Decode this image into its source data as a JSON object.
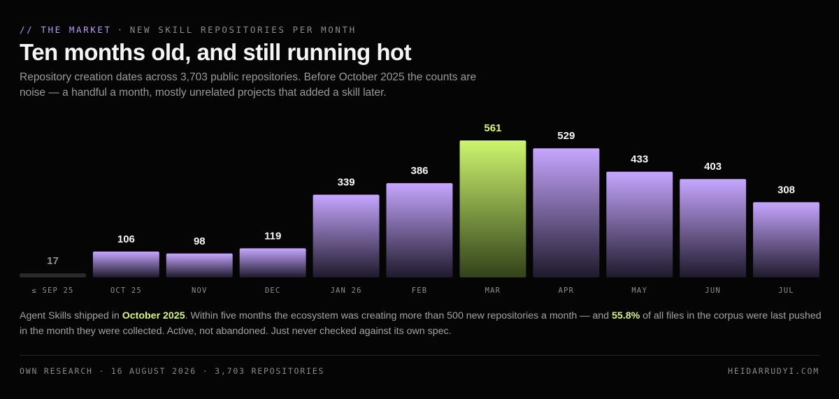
{
  "header": {
    "eyebrow_section": "// THE MARKET",
    "eyebrow_separator": "·",
    "eyebrow_topic": "NEW SKILL REPOSITORIES PER MONTH",
    "title": "Ten months old, and still running hot",
    "subtitle": "Repository creation dates across 3,703 public repositories. Before October 2025 the counts are noise — a handful a month, mostly unrelated projects that added a skill later."
  },
  "chart_data": {
    "type": "bar",
    "categories": [
      "≤ SEP 25",
      "OCT 25",
      "NOV",
      "DEC",
      "JAN 26",
      "FEB",
      "MAR",
      "APR",
      "MAY",
      "JUN",
      "JUL"
    ],
    "values": [
      17,
      106,
      98,
      119,
      339,
      386,
      561,
      529,
      433,
      403,
      308
    ],
    "ylim": [
      0,
      561
    ],
    "highlight_index": 6,
    "muted_index": 0,
    "grid": false,
    "legend": "none",
    "colors": {
      "bar_top": "#c6a6ff",
      "bar_bottom": "#1f1a2c",
      "highlight_top": "#cdf56e",
      "highlight_bottom": "#32421a",
      "muted": "#2a2a2a",
      "label": "#f5f5f5",
      "highlight_label": "#d7f77a",
      "muted_label": "#8e8e8e"
    }
  },
  "note": {
    "part1": "Agent Skills shipped in ",
    "hl1": "October 2025",
    "part2": ". Within five months the ecosystem was creating more than 500 new repositories a month — and ",
    "hl2": "55.8%",
    "part3": " of all files in the corpus were last pushed in the month they were collected. Active, not abandoned. Just never checked against its own spec."
  },
  "footer": {
    "left": "OWN RESEARCH · 16 AUGUST 2026 · 3,703 REPOSITORIES",
    "right": "HEIDARRUDYI.COM"
  }
}
